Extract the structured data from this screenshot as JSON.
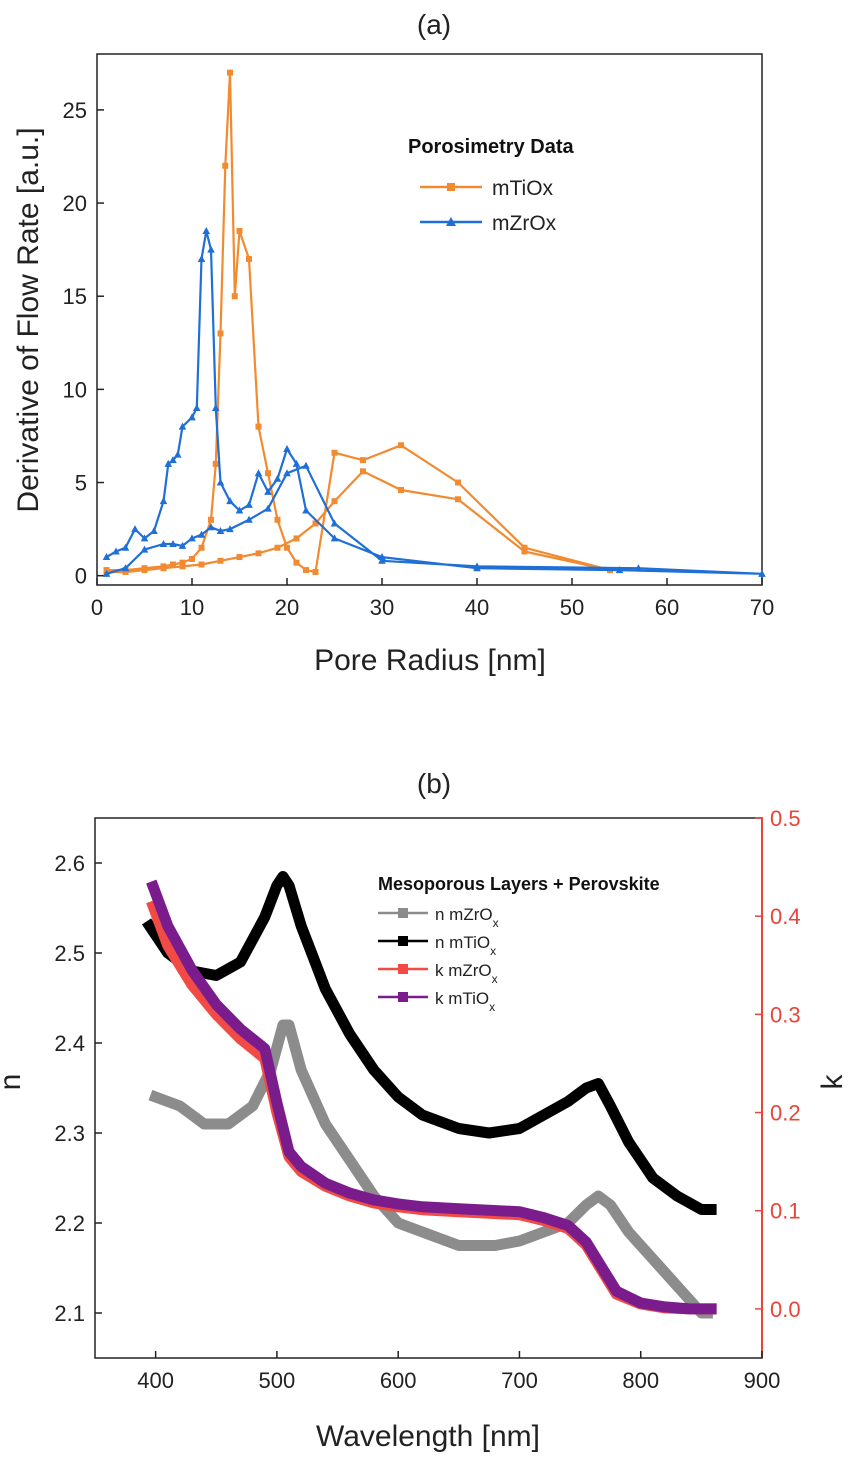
{
  "chart_data": [
    {
      "type": "line",
      "title": "(a)",
      "xlabel": "Pore Radius [nm]",
      "ylabel": "Derivative of Flow Rate [a.u.]",
      "xlim": [
        0,
        70
      ],
      "ylim": [
        -0.5,
        28
      ],
      "xticks": [
        0,
        10,
        20,
        30,
        40,
        50,
        60,
        70
      ],
      "yticks": [
        0,
        5,
        10,
        15,
        20,
        25
      ],
      "grid": false,
      "legend": {
        "title": "Porosimetry Data",
        "position": "top-right"
      },
      "series": [
        {
          "name": "mTiOx",
          "color": "#f28a30",
          "marker": "square",
          "x": [
            1,
            3,
            5,
            7,
            8,
            9,
            10,
            11,
            12,
            12.5,
            13,
            13.5,
            14,
            14.5,
            15,
            16,
            17,
            18,
            19,
            20,
            21,
            22,
            23,
            25,
            28,
            32,
            38,
            45,
            54,
            45,
            38,
            32,
            28,
            25,
            23,
            21,
            19,
            17,
            15,
            13,
            11,
            9,
            7,
            5,
            3,
            1
          ],
          "y": [
            0.3,
            0.3,
            0.4,
            0.5,
            0.6,
            0.7,
            0.9,
            1.5,
            3,
            6,
            13,
            22,
            27,
            15,
            18.5,
            17,
            8,
            5.5,
            3,
            1.5,
            0.7,
            0.3,
            0.2,
            6.6,
            6.2,
            7,
            5,
            1.5,
            0.3,
            1.3,
            4.1,
            4.6,
            5.6,
            4,
            2.8,
            2,
            1.5,
            1.2,
            1,
            0.8,
            0.6,
            0.5,
            0.4,
            0.3,
            0.2,
            0.2
          ]
        },
        {
          "name": "mZrOx",
          "color": "#1f6fd6",
          "marker": "triangle",
          "x": [
            1,
            2,
            3,
            4,
            5,
            6,
            7,
            7.5,
            8,
            8.5,
            9,
            10,
            10.5,
            11,
            11.5,
            12,
            12.5,
            13,
            14,
            15,
            16,
            17,
            18,
            19,
            20,
            21,
            22,
            25,
            30,
            40,
            55,
            70,
            57,
            40,
            30,
            25,
            22,
            20,
            18,
            16,
            14,
            13,
            12,
            11,
            10,
            9,
            8,
            7,
            5,
            3,
            1
          ],
          "y": [
            1,
            1.3,
            1.5,
            2.5,
            2,
            2.4,
            4,
            6,
            6.2,
            6.5,
            8,
            8.5,
            9,
            17,
            18.5,
            17.5,
            9,
            5,
            4,
            3.5,
            3.8,
            5.5,
            4.5,
            5.2,
            6.8,
            6,
            3.5,
            2,
            1,
            0.4,
            0.3,
            0.1,
            0.4,
            0.5,
            0.8,
            2.8,
            5.9,
            5.5,
            3.6,
            3,
            2.5,
            2.4,
            2.6,
            2.2,
            2,
            1.6,
            1.7,
            1.7,
            1.4,
            0.4,
            0.1
          ]
        }
      ]
    },
    {
      "type": "line",
      "title": "(b)",
      "xlabel": "Wavelength [nm]",
      "ylabel": "n",
      "ylabel_right": "k",
      "xlim": [
        350,
        900
      ],
      "ylim": [
        2.05,
        2.65
      ],
      "ylim_right": [
        -0.05,
        0.5
      ],
      "xticks": [
        400,
        500,
        600,
        700,
        800,
        900
      ],
      "yticks": [
        2.1,
        2.2,
        2.3,
        2.4,
        2.5,
        2.6
      ],
      "yticks_right": [
        0.0,
        0.1,
        0.2,
        0.3,
        0.4,
        0.5
      ],
      "grid": false,
      "legend": {
        "title": "Mesoporous Layers + Perovskite",
        "position": "top-right"
      },
      "series": [
        {
          "name": "n mZrOx",
          "axis": "left",
          "color": "#8c8c8c",
          "x": [
            400,
            420,
            440,
            460,
            480,
            495,
            505,
            510,
            520,
            540,
            560,
            580,
            600,
            620,
            650,
            680,
            700,
            720,
            740,
            755,
            765,
            775,
            790,
            810,
            830,
            850,
            855
          ],
          "y": [
            2.34,
            2.33,
            2.31,
            2.31,
            2.33,
            2.37,
            2.42,
            2.42,
            2.37,
            2.31,
            2.27,
            2.23,
            2.2,
            2.19,
            2.175,
            2.175,
            2.18,
            2.19,
            2.2,
            2.22,
            2.23,
            2.22,
            2.19,
            2.16,
            2.13,
            2.1,
            2.1
          ]
        },
        {
          "name": "n mTiOx",
          "axis": "left",
          "color": "#000000",
          "x": [
            395,
            410,
            430,
            450,
            470,
            490,
            500,
            505,
            510,
            520,
            540,
            560,
            580,
            600,
            620,
            650,
            675,
            700,
            720,
            740,
            755,
            765,
            775,
            790,
            810,
            830,
            850,
            858
          ],
          "y": [
            2.53,
            2.5,
            2.48,
            2.475,
            2.49,
            2.54,
            2.575,
            2.585,
            2.575,
            2.53,
            2.46,
            2.41,
            2.37,
            2.34,
            2.32,
            2.305,
            2.3,
            2.305,
            2.32,
            2.335,
            2.35,
            2.355,
            2.33,
            2.29,
            2.25,
            2.23,
            2.215,
            2.215
          ]
        },
        {
          "name": "k mZrOx",
          "axis": "right",
          "color": "#f24b45",
          "x": [
            398,
            410,
            430,
            450,
            470,
            490,
            500,
            510,
            520,
            540,
            560,
            580,
            600,
            620,
            650,
            700,
            720,
            740,
            755,
            765,
            780,
            800,
            820,
            840,
            858
          ],
          "y": [
            0.41,
            0.37,
            0.33,
            0.3,
            0.275,
            0.255,
            0.2,
            0.155,
            0.14,
            0.125,
            0.115,
            0.108,
            0.104,
            0.101,
            0.099,
            0.096,
            0.09,
            0.082,
            0.065,
            0.045,
            0.015,
            0.005,
            0.001,
            0.0,
            0.0
          ]
        },
        {
          "name": "k mTiOx",
          "axis": "right",
          "color": "#7b1c8c",
          "x": [
            398,
            410,
            430,
            450,
            470,
            490,
            500,
            510,
            520,
            540,
            560,
            580,
            600,
            620,
            650,
            700,
            720,
            740,
            755,
            765,
            780,
            800,
            820,
            840,
            858
          ],
          "y": [
            0.43,
            0.39,
            0.345,
            0.31,
            0.285,
            0.265,
            0.21,
            0.16,
            0.145,
            0.128,
            0.118,
            0.111,
            0.107,
            0.104,
            0.102,
            0.099,
            0.093,
            0.085,
            0.068,
            0.048,
            0.018,
            0.006,
            0.002,
            0.0,
            0.0
          ]
        }
      ]
    }
  ]
}
